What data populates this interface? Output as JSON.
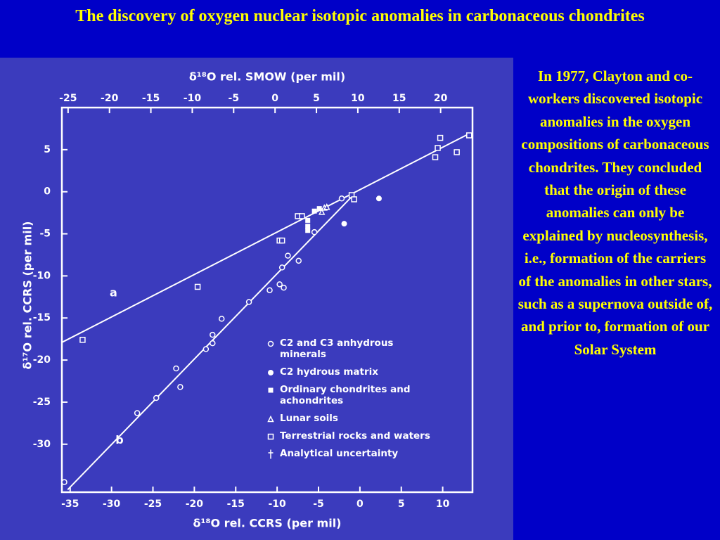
{
  "slide": {
    "title": "The discovery of oxygen nuclear isotopic anomalies in carbonaceous chondrites",
    "body": "In 1977, Clayton and co-workers discovered isotopic anomalies in the oxygen compositions of carbonaceous chondrites. They concluded that the origin of these anomalies can only be explained by nucleosynthesis, i.e., formation of the carriers of the anomalies in other stars, such as a supernova outside of, and prior to, formation of our Solar System"
  },
  "chart_data": {
    "type": "scatter",
    "x2_label": "δ¹⁸O rel. SMOW (per mil)",
    "x_label": "δ¹⁸O rel. CCRS (per mil)",
    "y_label": "δ¹⁷O rel. CCRS (per mil)",
    "xlim": [
      -36,
      13.6
    ],
    "xticks": [
      -35,
      -30,
      -25,
      -20,
      -15,
      -10,
      -5,
      0,
      5,
      10
    ],
    "x2lim": [
      -25.75,
      23.85
    ],
    "x2ticks": [
      -25,
      -20,
      -15,
      -10,
      -5,
      0,
      5,
      10,
      15,
      20
    ],
    "ylim": [
      -35.7,
      10
    ],
    "yticks": [
      5,
      0,
      -5,
      -10,
      -15,
      -20,
      -25,
      -30
    ],
    "color": "#ffffff",
    "lines": [
      {
        "name": "a",
        "x": [
          -36,
          13.2
        ],
        "values": [
          -17.9,
          6.9
        ]
      },
      {
        "name": "b",
        "x": [
          -35.3,
          -0.8
        ],
        "values": [
          -35.4,
          -0.4
        ]
      }
    ],
    "series": [
      {
        "name": "C2 and C3 anhydrous minerals",
        "marker": "open-circle",
        "x": [
          -35.7,
          -26.9,
          -24.6,
          -22.2,
          -21.7,
          -18.6,
          -17.8,
          -17.8,
          -16.7,
          -13.4,
          -10.9,
          -9.7,
          -9.2,
          -9.4,
          -8.7,
          -7.4,
          -5.5,
          -2.2
        ],
        "values": [
          -34.5,
          -26.3,
          -24.5,
          -21.0,
          -23.2,
          -18.7,
          -18.0,
          -17.0,
          -15.1,
          -13.1,
          -11.7,
          -11.0,
          -11.4,
          -9.0,
          -7.6,
          -8.2,
          -4.8,
          -0.8
        ]
      },
      {
        "name": "C2 hydrous matrix",
        "marker": "filled-circle",
        "x": [
          -1.9,
          2.3
        ],
        "values": [
          -3.8,
          -0.8
        ]
      },
      {
        "name": "Ordinary chondrites and achondrites",
        "marker": "filled-square",
        "x": [
          -6.3,
          -6.3,
          -6.3,
          -5.5,
          -4.9
        ],
        "values": [
          -3.4,
          -4.1,
          -4.6,
          -2.3,
          -2.0
        ]
      },
      {
        "name": "Lunar soils",
        "marker": "open-triangle",
        "x": [
          -4.6,
          -4.3,
          -4.0
        ],
        "values": [
          -2.4,
          -1.9,
          -1.8
        ]
      },
      {
        "name": "Terrestrial rocks and waters",
        "marker": "open-square",
        "x": [
          -33.5,
          -19.6,
          -9.7,
          -9.4,
          -7.5,
          -7.0,
          -1.0,
          -0.7,
          9.1,
          9.4,
          9.7,
          11.7,
          13.2
        ],
        "values": [
          -17.6,
          -11.3,
          -5.8,
          -5.8,
          -2.9,
          -2.9,
          -0.4,
          -0.9,
          4.1,
          5.2,
          6.4,
          4.7,
          6.7
        ]
      },
      {
        "name": "Analytical uncertainty",
        "marker": "dagger",
        "x": [],
        "values": []
      }
    ]
  }
}
